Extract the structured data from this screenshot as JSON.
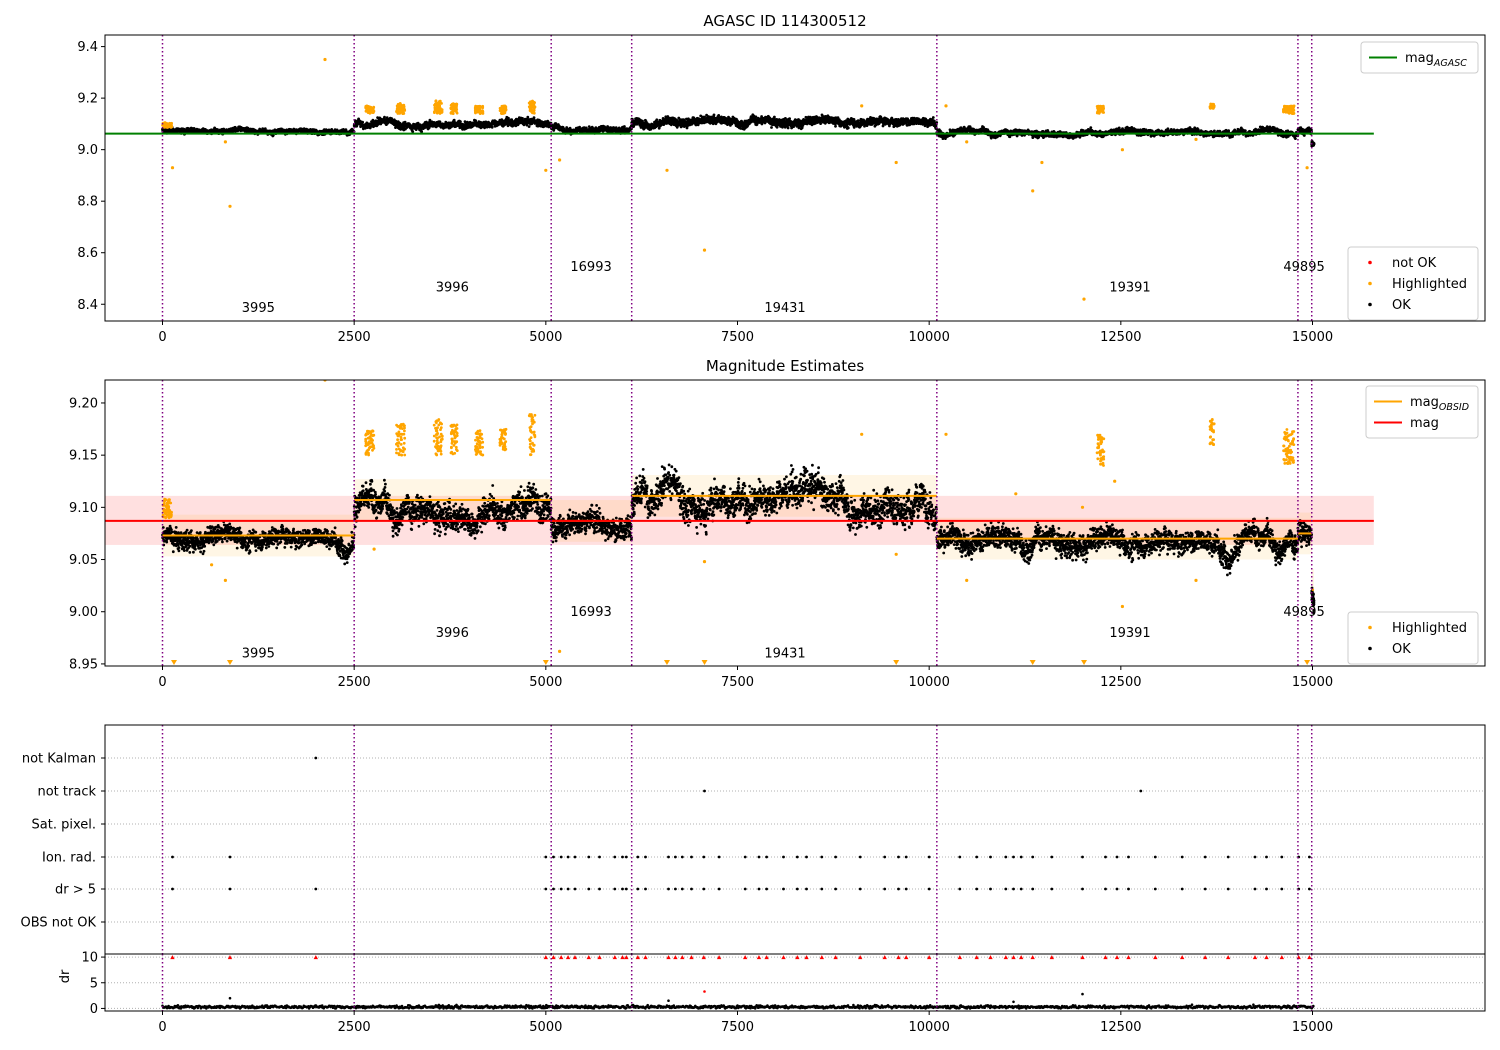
{
  "chart_data": [
    {
      "type": "scatter",
      "title": "AGASC ID 114300512",
      "xlim": [
        -750,
        17250
      ],
      "ylim": [
        8.335,
        9.445
      ],
      "xticks": [
        0,
        2500,
        5000,
        7500,
        10000,
        12500,
        15000
      ],
      "yticks": [
        8.4,
        8.6,
        8.8,
        9.0,
        9.2,
        9.4
      ],
      "ytick_decimals": 1,
      "obs_boundaries": [
        0,
        2500,
        5070,
        6120,
        10100,
        14810,
        14990
      ],
      "obs_labels": [
        {
          "text": "3995",
          "x": 1250,
          "y": 8.37
        },
        {
          "text": "3996",
          "x": 3780,
          "y": 8.45
        },
        {
          "text": "16993",
          "x": 5590,
          "y": 8.53
        },
        {
          "text": "19431",
          "x": 8120,
          "y": 8.37
        },
        {
          "text": "19391",
          "x": 12620,
          "y": 8.45
        },
        {
          "text": "49895",
          "x": 14890,
          "y": 8.53
        }
      ],
      "reference_lines": [
        {
          "name": "mag",
          "sub": "AGASC",
          "value": 9.062,
          "color": "#008000",
          "x_range": [
            -750,
            15800
          ]
        }
      ],
      "segments": [
        {
          "x0": 0,
          "x1": 2500,
          "mean": 9.072,
          "spread": 0.008
        },
        {
          "x0": 2500,
          "x1": 5070,
          "mean": 9.1,
          "spread": 0.012
        },
        {
          "x0": 5070,
          "x1": 6120,
          "mean": 9.085,
          "spread": 0.01
        },
        {
          "x0": 6120,
          "x1": 10100,
          "mean": 9.11,
          "spread": 0.014
        },
        {
          "x0": 10100,
          "x1": 14810,
          "mean": 9.068,
          "spread": 0.01
        },
        {
          "x0": 14810,
          "x1": 14990,
          "mean": 9.075,
          "spread": 0.01
        },
        {
          "x0": 14990,
          "x1": 15020,
          "mean": 9.02,
          "spread": 0.008
        }
      ],
      "highlight_clusters": [
        {
          "x0": 0,
          "x1": 120,
          "lo": 9.085,
          "hi": 9.105
        },
        {
          "x0": 2650,
          "x1": 2760,
          "lo": 9.14,
          "hi": 9.17
        },
        {
          "x0": 3050,
          "x1": 3160,
          "lo": 9.14,
          "hi": 9.18
        },
        {
          "x0": 3540,
          "x1": 3650,
          "lo": 9.14,
          "hi": 9.19
        },
        {
          "x0": 3760,
          "x1": 3850,
          "lo": 9.14,
          "hi": 9.18
        },
        {
          "x0": 4080,
          "x1": 4180,
          "lo": 9.14,
          "hi": 9.17
        },
        {
          "x0": 4400,
          "x1": 4480,
          "lo": 9.14,
          "hi": 9.17
        },
        {
          "x0": 4780,
          "x1": 4860,
          "lo": 9.14,
          "hi": 9.19
        },
        {
          "x0": 12190,
          "x1": 12280,
          "lo": 9.14,
          "hi": 9.17
        },
        {
          "x0": 13660,
          "x1": 13720,
          "lo": 9.16,
          "hi": 9.18
        },
        {
          "x0": 14620,
          "x1": 14760,
          "lo": 9.14,
          "hi": 9.17
        }
      ],
      "highlight_outliers": [
        {
          "x": 130,
          "y": 8.93
        },
        {
          "x": 880,
          "y": 8.78
        },
        {
          "x": 2120,
          "y": 9.35
        },
        {
          "x": 5000,
          "y": 8.92
        },
        {
          "x": 5180,
          "y": 8.96
        },
        {
          "x": 6580,
          "y": 8.92
        },
        {
          "x": 7070,
          "y": 8.61
        },
        {
          "x": 9120,
          "y": 9.17
        },
        {
          "x": 9570,
          "y": 8.95
        },
        {
          "x": 10220,
          "y": 9.17
        },
        {
          "x": 11350,
          "y": 8.84
        },
        {
          "x": 11470,
          "y": 8.95
        },
        {
          "x": 12020,
          "y": 8.42
        },
        {
          "x": 12520,
          "y": 9.0
        },
        {
          "x": 14930,
          "y": 8.93
        },
        {
          "x": 820,
          "y": 9.03
        },
        {
          "x": 10490,
          "y": 9.03
        },
        {
          "x": 13480,
          "y": 9.04
        }
      ],
      "legend_lines": [
        {
          "label": "mag",
          "sub": "AGASC",
          "color": "#008000"
        }
      ],
      "legend_markers": [
        {
          "label": "not OK",
          "color": "#ff0000"
        },
        {
          "label": "Highlighted",
          "color": "#ffa500"
        },
        {
          "label": "OK",
          "color": "#000000"
        }
      ]
    },
    {
      "type": "scatter",
      "title": "Magnitude Estimates",
      "xlim": [
        -750,
        17250
      ],
      "ylim": [
        8.948,
        9.222
      ],
      "xticks": [
        0,
        2500,
        5000,
        7500,
        10000,
        12500,
        15000
      ],
      "yticks": [
        8.95,
        9.0,
        9.05,
        9.1,
        9.15,
        9.2
      ],
      "ytick_decimals": 2,
      "obs_boundaries": [
        0,
        2500,
        5070,
        6120,
        10100,
        14810,
        14990
      ],
      "obs_labels": [
        {
          "text": "3995",
          "x": 1250,
          "y": 8.956
        },
        {
          "text": "3996",
          "x": 3780,
          "y": 8.976
        },
        {
          "text": "16993",
          "x": 5590,
          "y": 8.996
        },
        {
          "text": "19431",
          "x": 8120,
          "y": 8.956
        },
        {
          "text": "19391",
          "x": 12620,
          "y": 8.976
        },
        {
          "text": "49895",
          "x": 14890,
          "y": 8.996
        }
      ],
      "band": {
        "lo": 9.064,
        "hi": 9.111,
        "color": "#ff0000",
        "x_range": [
          -750,
          15800
        ]
      },
      "reference_lines": [
        {
          "name": "mag",
          "sub": "",
          "value": 9.087,
          "color": "#ff0000",
          "x_range": [
            -750,
            15800
          ]
        }
      ],
      "obs_means": [
        {
          "x0": 0,
          "x1": 2500,
          "value": 9.073
        },
        {
          "x0": 2500,
          "x1": 5070,
          "value": 9.107
        },
        {
          "x0": 5070,
          "x1": 6120,
          "value": 9.087
        },
        {
          "x0": 6120,
          "x1": 10100,
          "value": 9.111
        },
        {
          "x0": 10100,
          "x1": 14810,
          "value": 9.07
        },
        {
          "x0": 14810,
          "x1": 14990,
          "value": 9.075
        },
        {
          "x0": 14990,
          "x1": 15020,
          "value": 9.021
        }
      ],
      "segments": [
        {
          "x0": 0,
          "x1": 2500,
          "mean": 9.072,
          "spread": 0.008
        },
        {
          "x0": 2500,
          "x1": 5070,
          "mean": 9.1,
          "spread": 0.012
        },
        {
          "x0": 5070,
          "x1": 6120,
          "mean": 9.085,
          "spread": 0.01
        },
        {
          "x0": 6120,
          "x1": 10100,
          "mean": 9.11,
          "spread": 0.014
        },
        {
          "x0": 10100,
          "x1": 14810,
          "mean": 9.068,
          "spread": 0.01
        },
        {
          "x0": 14810,
          "x1": 14990,
          "mean": 9.075,
          "spread": 0.01
        },
        {
          "x0": 14990,
          "x1": 15020,
          "mean": 9.015,
          "spread": 0.008
        }
      ],
      "highlight_clusters": [
        {
          "x0": 0,
          "x1": 120,
          "lo": 9.09,
          "hi": 9.108
        },
        {
          "x0": 2650,
          "x1": 2760,
          "lo": 9.15,
          "hi": 9.175
        },
        {
          "x0": 3050,
          "x1": 3160,
          "lo": 9.15,
          "hi": 9.18
        },
        {
          "x0": 3540,
          "x1": 3650,
          "lo": 9.15,
          "hi": 9.185
        },
        {
          "x0": 3760,
          "x1": 3850,
          "lo": 9.15,
          "hi": 9.18
        },
        {
          "x0": 4080,
          "x1": 4180,
          "lo": 9.15,
          "hi": 9.175
        },
        {
          "x0": 4400,
          "x1": 4480,
          "lo": 9.155,
          "hi": 9.175
        },
        {
          "x0": 4780,
          "x1": 4860,
          "lo": 9.15,
          "hi": 9.19
        },
        {
          "x0": 12190,
          "x1": 12280,
          "lo": 9.14,
          "hi": 9.17
        },
        {
          "x0": 13660,
          "x1": 13720,
          "lo": 9.16,
          "hi": 9.185
        },
        {
          "x0": 14620,
          "x1": 14760,
          "lo": 9.14,
          "hi": 9.175
        }
      ],
      "highlight_outliers": [
        {
          "x": 2120,
          "y": 9.222
        },
        {
          "x": 820,
          "y": 9.03
        },
        {
          "x": 640,
          "y": 9.045
        },
        {
          "x": 2760,
          "y": 9.06
        },
        {
          "x": 5180,
          "y": 8.962
        },
        {
          "x": 7070,
          "y": 9.048
        },
        {
          "x": 9120,
          "y": 9.17
        },
        {
          "x": 9570,
          "y": 9.055
        },
        {
          "x": 10220,
          "y": 9.17
        },
        {
          "x": 10490,
          "y": 9.03
        },
        {
          "x": 12520,
          "y": 9.005
        },
        {
          "x": 13480,
          "y": 9.03
        },
        {
          "x": 12420,
          "y": 9.125
        },
        {
          "x": 11130,
          "y": 9.113
        },
        {
          "x": 12000,
          "y": 9.1
        }
      ],
      "below_range_markers": [
        150,
        880,
        5000,
        6580,
        7070,
        9570,
        11350,
        12020,
        14930
      ],
      "legend_lines": [
        {
          "label": "mag",
          "sub": "OBSID",
          "color": "#ffa500"
        },
        {
          "label": "mag",
          "sub": "",
          "color": "#ff0000"
        }
      ],
      "legend_markers": [
        {
          "label": "Highlighted",
          "color": "#ffa500"
        },
        {
          "label": "OK",
          "color": "#000000"
        }
      ]
    },
    {
      "type": "scatter",
      "title": "",
      "xlim": [
        -750,
        17250
      ],
      "xticks": [
        0,
        2500,
        5000,
        7500,
        10000,
        12500,
        15000
      ],
      "obs_boundaries": [
        0,
        2500,
        5070,
        6120,
        10100,
        14810,
        14990
      ],
      "flag_rows": [
        "not Kalman",
        "not track",
        "Sat. pixel.",
        "Ion. rad.",
        "dr > 5",
        "OBS not OK"
      ],
      "flag_points": {
        "not Kalman": [
          2000
        ],
        "not track": [
          7070,
          12760
        ],
        "Sat. pixel.": [],
        "Ion. rad.": [
          130,
          880,
          5000,
          5100,
          5200,
          5290,
          5380,
          5560,
          5700,
          5900,
          6000,
          6050,
          6200,
          6300,
          6600,
          6690,
          6780,
          6900,
          7060,
          7260,
          7600,
          7780,
          7880,
          8100,
          8280,
          8400,
          8600,
          8780,
          9100,
          9420,
          9600,
          9700,
          10000,
          10400,
          10620,
          10800,
          11000,
          11100,
          11200,
          11350,
          11600,
          12000,
          12300,
          12450,
          12600,
          12950,
          13300,
          13600,
          13900,
          14250,
          14400,
          14600,
          14820,
          14960
        ],
        "dr > 5": [
          130,
          880,
          2000,
          5000,
          5100,
          5200,
          5290,
          5380,
          5560,
          5700,
          5900,
          6000,
          6050,
          6200,
          6300,
          6600,
          6690,
          6780,
          6900,
          7060,
          7260,
          7600,
          7780,
          7880,
          8100,
          8280,
          8400,
          8600,
          8780,
          9100,
          9420,
          9600,
          9700,
          10000,
          10400,
          10620,
          10800,
          11000,
          11100,
          11200,
          11350,
          11600,
          12000,
          12300,
          12450,
          12600,
          12950,
          13300,
          13600,
          13900,
          14250,
          14400,
          14600,
          14820,
          14960
        ],
        "OBS not OK": []
      }
    },
    {
      "type": "scatter",
      "title": "",
      "ylabel": "dr",
      "xlim": [
        -750,
        17250
      ],
      "ylim": [
        -0.5,
        10.6
      ],
      "xticks": [
        0,
        2500,
        5000,
        7500,
        10000,
        12500,
        15000
      ],
      "yticks": [
        0,
        5,
        10
      ],
      "ytick_decimals": 0,
      "obs_boundaries": [
        0,
        2500,
        5070,
        6120,
        10100,
        14810,
        14990
      ],
      "baseline": {
        "mean": 0.3,
        "spread": 0.25
      },
      "outliers": [
        {
          "x": 880,
          "y": 2.0
        },
        {
          "x": 7070,
          "y": 3.3
        },
        {
          "x": 12000,
          "y": 2.8
        },
        {
          "x": 6600,
          "y": 1.5
        },
        {
          "x": 11100,
          "y": 1.3
        }
      ],
      "capped_points": [
        130,
        880,
        2000,
        5000,
        5100,
        5200,
        5290,
        5380,
        5560,
        5700,
        5900,
        6000,
        6050,
        6200,
        6300,
        6600,
        6690,
        6780,
        6900,
        7060,
        7260,
        7600,
        7780,
        7880,
        8100,
        8280,
        8400,
        8600,
        8780,
        9100,
        9420,
        9600,
        9700,
        10000,
        10400,
        10620,
        10800,
        11000,
        11100,
        11200,
        11350,
        11600,
        12000,
        12300,
        12450,
        12600,
        12950,
        13300,
        13600,
        13900,
        14250,
        14400,
        14600,
        14820,
        14960
      ]
    }
  ]
}
